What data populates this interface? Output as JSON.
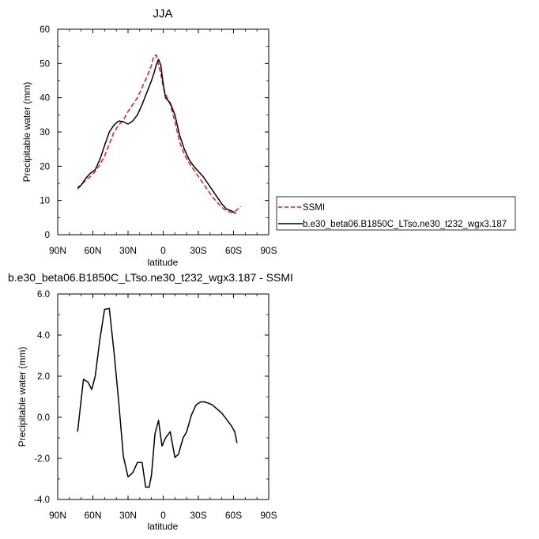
{
  "chart_data": [
    {
      "type": "line",
      "title": "JJA",
      "xlabel": "latitude",
      "ylabel": "Precipitable water (mm)",
      "xlim": [
        90,
        -90
      ],
      "ylim": [
        0,
        60
      ],
      "x_ticks": [
        {
          "value": 90,
          "label": "90N"
        },
        {
          "value": 60,
          "label": "60N"
        },
        {
          "value": 30,
          "label": "30N"
        },
        {
          "value": 0,
          "label": "0"
        },
        {
          "value": -30,
          "label": "30S"
        },
        {
          "value": -60,
          "label": "60S"
        },
        {
          "value": -90,
          "label": "90S"
        }
      ],
      "y_ticks": [
        {
          "value": 0,
          "label": "0"
        },
        {
          "value": 10,
          "label": "10"
        },
        {
          "value": 20,
          "label": "20"
        },
        {
          "value": 30,
          "label": "30"
        },
        {
          "value": 40,
          "label": "40"
        },
        {
          "value": 50,
          "label": "50"
        },
        {
          "value": 60,
          "label": "60"
        }
      ],
      "grid": false,
      "legend_placement": "outside-right",
      "series": [
        {
          "name": "SSMI",
          "color": "#e41a1c",
          "dash": "dashed",
          "x": [
            73,
            70,
            66,
            62,
            58,
            54,
            50,
            46,
            42,
            38,
            34,
            30,
            26,
            22,
            18,
            14,
            10,
            8,
            6,
            4,
            2,
            0,
            -2,
            -6,
            -10,
            -14,
            -18,
            -22,
            -26,
            -30,
            -34,
            -38,
            -42,
            -46,
            -50,
            -54,
            -58,
            -62,
            -66
          ],
          "y": [
            13.3,
            14.5,
            16,
            17,
            18.5,
            20.5,
            23,
            26.5,
            30,
            32,
            33.5,
            36,
            38,
            40,
            43,
            46,
            49.5,
            52.2,
            52.5,
            49.5,
            47,
            43,
            41,
            38,
            33,
            27,
            23.5,
            21,
            19,
            17,
            15,
            13,
            11,
            9.5,
            8,
            7,
            6.5,
            7,
            8.3
          ]
        },
        {
          "name": "b.e30_beta06.B1850C_LTso.ne30_t232_wgx3.187",
          "color": "#000000",
          "dash": "solid",
          "x": [
            73,
            70,
            66,
            62,
            58,
            54,
            50,
            46,
            42,
            38,
            34,
            30,
            26,
            22,
            18,
            14,
            10,
            8,
            6,
            4,
            2,
            0,
            -2,
            -6,
            -10,
            -14,
            -18,
            -22,
            -26,
            -30,
            -34,
            -38,
            -42,
            -46,
            -50,
            -54,
            -58,
            -62
          ],
          "y": [
            13.8,
            14.5,
            16.5,
            18,
            19,
            22,
            26,
            30,
            32,
            33.2,
            33,
            32.3,
            33.2,
            35,
            38,
            41.5,
            45,
            47,
            49.5,
            51.2,
            49.5,
            44,
            40,
            38.5,
            35,
            29,
            25,
            22,
            20,
            18.5,
            17,
            15,
            13,
            11,
            9,
            7.5,
            7,
            6.2
          ]
        }
      ]
    },
    {
      "type": "line",
      "title": "b.e30_beta06.B1850C_LTso.ne30_t232_wgx3.187 - SSMI",
      "xlabel": "latitude",
      "ylabel": "Precipitable water (mm)",
      "xlim": [
        90,
        -90
      ],
      "ylim": [
        -4,
        6
      ],
      "x_ticks": [
        {
          "value": 90,
          "label": "90N"
        },
        {
          "value": 60,
          "label": "60N"
        },
        {
          "value": 30,
          "label": "30N"
        },
        {
          "value": 0,
          "label": "0"
        },
        {
          "value": -30,
          "label": "30S"
        },
        {
          "value": -60,
          "label": "60S"
        },
        {
          "value": -90,
          "label": "90S"
        }
      ],
      "y_ticks": [
        {
          "value": -4,
          "label": "-4.0"
        },
        {
          "value": -2,
          "label": "-2.0"
        },
        {
          "value": 0,
          "label": "0.0"
        },
        {
          "value": 2,
          "label": "2.0"
        },
        {
          "value": 4,
          "label": "4.0"
        },
        {
          "value": 6,
          "label": "6.0"
        }
      ],
      "grid": false,
      "series": [
        {
          "color": "#000000",
          "dash": "solid",
          "x": [
            73,
            68,
            64,
            61,
            58,
            54,
            50,
            46,
            42,
            38,
            34,
            30,
            26,
            22,
            18,
            15,
            12,
            10,
            7,
            4,
            1,
            -2,
            -6,
            -10,
            -13,
            -17,
            -20,
            -24,
            -28,
            -32,
            -35,
            -38,
            -42,
            -46,
            -50,
            -54,
            -58,
            -61,
            -63
          ],
          "y": [
            -0.7,
            1.85,
            1.7,
            1.35,
            2.0,
            3.8,
            5.25,
            5.3,
            3.2,
            0.8,
            -1.9,
            -2.9,
            -2.7,
            -2.2,
            -2.2,
            -3.4,
            -3.4,
            -2.8,
            -0.8,
            -0.15,
            -1.4,
            -1.0,
            -0.7,
            -1.95,
            -1.8,
            -1.0,
            -0.7,
            0.1,
            0.6,
            0.75,
            0.75,
            0.7,
            0.6,
            0.4,
            0.2,
            -0.1,
            -0.4,
            -0.7,
            -1.25
          ]
        }
      ]
    }
  ]
}
